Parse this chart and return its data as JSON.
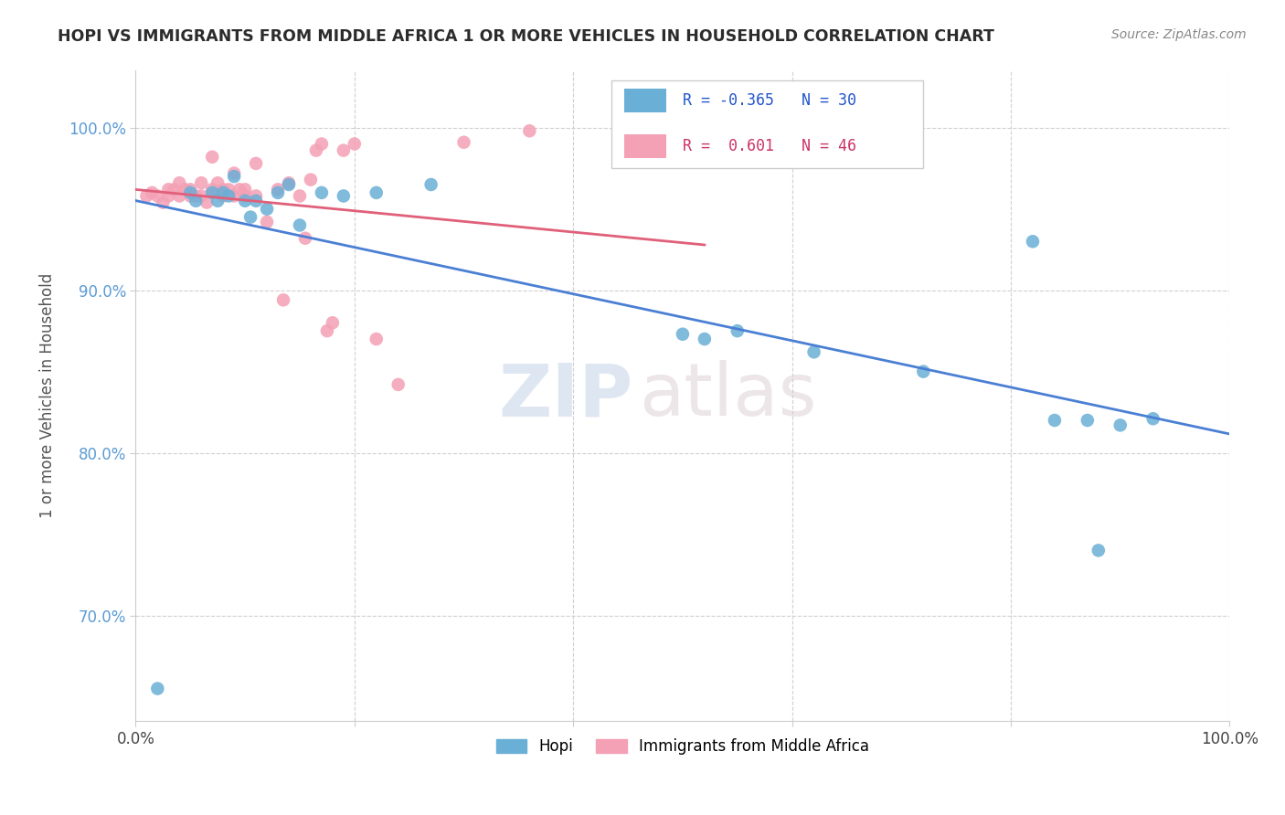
{
  "title": "HOPI VS IMMIGRANTS FROM MIDDLE AFRICA 1 OR MORE VEHICLES IN HOUSEHOLD CORRELATION CHART",
  "source_text": "Source: ZipAtlas.com",
  "ylabel": "1 or more Vehicles in Household",
  "xlim": [
    0.0,
    1.0
  ],
  "ylim": [
    0.635,
    1.035
  ],
  "xticks": [
    0.0,
    0.2,
    0.4,
    0.6,
    0.8,
    1.0
  ],
  "yticks": [
    0.7,
    0.8,
    0.9,
    1.0
  ],
  "xtick_labels": [
    "0.0%",
    "",
    "",
    "",
    "",
    "100.0%"
  ],
  "ytick_labels": [
    "70.0%",
    "80.0%",
    "90.0%",
    "100.0%"
  ],
  "legend_labels": [
    "Hopi",
    "Immigrants from Middle Africa"
  ],
  "hopi_R": -0.365,
  "hopi_N": 30,
  "immigrants_R": 0.601,
  "immigrants_N": 46,
  "hopi_color": "#6aafd6",
  "immigrants_color": "#f4a0b5",
  "hopi_line_color": "#4a7fd4",
  "immigrants_line_color": "#e0607a",
  "watermark_zip": "ZIP",
  "watermark_atlas": "atlas",
  "background_color": "#ffffff",
  "grid_color": "#d0d0d0",
  "hopi_x": [
    0.02,
    0.05,
    0.055,
    0.07,
    0.075,
    0.08,
    0.085,
    0.09,
    0.1,
    0.105,
    0.11,
    0.12,
    0.13,
    0.14,
    0.15,
    0.17,
    0.19,
    0.22,
    0.27,
    0.5,
    0.52,
    0.55,
    0.62,
    0.72,
    0.82,
    0.84,
    0.87,
    0.88,
    0.9,
    0.93
  ],
  "hopi_y": [
    0.655,
    0.96,
    0.955,
    0.96,
    0.955,
    0.96,
    0.958,
    0.97,
    0.955,
    0.945,
    0.955,
    0.95,
    0.96,
    0.965,
    0.94,
    0.96,
    0.958,
    0.96,
    0.965,
    0.873,
    0.87,
    0.875,
    0.862,
    0.85,
    0.93,
    0.82,
    0.82,
    0.74,
    0.817,
    0.821
  ],
  "immigrants_x": [
    0.01,
    0.015,
    0.02,
    0.025,
    0.03,
    0.03,
    0.035,
    0.04,
    0.04,
    0.045,
    0.05,
    0.05,
    0.055,
    0.06,
    0.06,
    0.065,
    0.07,
    0.07,
    0.075,
    0.08,
    0.08,
    0.085,
    0.09,
    0.09,
    0.095,
    0.1,
    0.1,
    0.11,
    0.11,
    0.12,
    0.13,
    0.135,
    0.14,
    0.15,
    0.155,
    0.16,
    0.165,
    0.17,
    0.175,
    0.18,
    0.19,
    0.2,
    0.22,
    0.24,
    0.3,
    0.36
  ],
  "immigrants_y": [
    0.958,
    0.96,
    0.958,
    0.954,
    0.958,
    0.962,
    0.962,
    0.958,
    0.966,
    0.962,
    0.958,
    0.962,
    0.958,
    0.958,
    0.966,
    0.954,
    0.962,
    0.982,
    0.966,
    0.958,
    0.962,
    0.962,
    0.958,
    0.972,
    0.962,
    0.962,
    0.958,
    0.958,
    0.978,
    0.942,
    0.962,
    0.894,
    0.966,
    0.958,
    0.932,
    0.968,
    0.986,
    0.99,
    0.875,
    0.88,
    0.986,
    0.99,
    0.87,
    0.842,
    0.991,
    0.998
  ]
}
